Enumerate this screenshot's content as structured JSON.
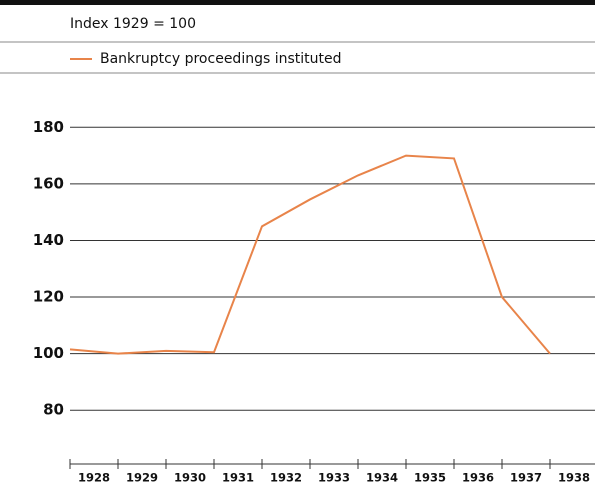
{
  "chart_data": {
    "type": "line",
    "subtitle": "Index 1929 = 100",
    "x": [
      1928,
      1929,
      1930,
      1931,
      1932,
      1933,
      1934,
      1935,
      1936,
      1937,
      1938
    ],
    "series": [
      {
        "name": "Bankruptcy proceedings instituted",
        "color": "#e8844a",
        "values": [
          101.5,
          100,
          101,
          100.5,
          145,
          154.5,
          163,
          170,
          169,
          120,
          100
        ]
      }
    ],
    "xlim": [
      1928,
      1939
    ],
    "xticks": [
      1928,
      1929,
      1930,
      1931,
      1932,
      1933,
      1934,
      1935,
      1936,
      1937,
      1938
    ],
    "ylim": [
      61,
      190
    ],
    "yticks": [
      80,
      100,
      120,
      140,
      160,
      180
    ],
    "grid": true
  }
}
